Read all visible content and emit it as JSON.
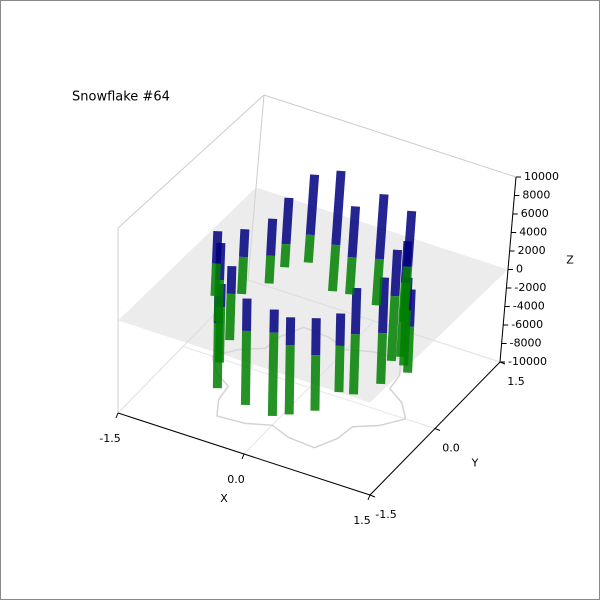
{
  "chart_data": {
    "type": "3d-stem",
    "title": "Snowflake #64",
    "xlabel": "X",
    "ylabel": "Y",
    "zlabel": "Z",
    "xlim": [
      -1.5,
      1.5
    ],
    "ylim": [
      -1.5,
      1.5
    ],
    "zlim": [
      -10000,
      10000
    ],
    "xticks": [
      -1.5,
      {
        "value": 0,
        "label": "0.0"
      },
      1.5
    ],
    "yticks": [
      -1.5,
      {
        "value": 0,
        "label": "0.0"
      },
      1.5
    ],
    "zticks": [
      -10000,
      -8000,
      -6000,
      -4000,
      -2000,
      0,
      2000,
      4000,
      6000,
      8000,
      10000
    ],
    "x": [
      1.15,
      0.97,
      0.74,
      0.71,
      0.58,
      0.26,
      0,
      -0.26,
      -0.58,
      -0.71,
      -0.74,
      -0.97,
      -1.15,
      -0.97,
      -0.74,
      -0.71,
      -0.58,
      -0.26,
      0,
      0.26,
      0.58,
      0.71,
      0.74,
      0.97
    ],
    "y": [
      0,
      0.26,
      0.43,
      0.71,
      1.0,
      0.97,
      0.85,
      0.97,
      1.0,
      0.71,
      0.43,
      0.26,
      0,
      -0.26,
      -0.43,
      -0.71,
      -1.0,
      -0.97,
      -0.85,
      -0.97,
      -1.0,
      -0.71,
      -0.43,
      -0.26
    ],
    "series": [
      {
        "color": "#000080",
        "values": [
          4000,
          3500,
          5000,
          4500,
          6000,
          7000,
          5500,
          8000,
          6500,
          5000,
          4000,
          3000,
          3500,
          4000,
          3000,
          2500,
          3000,
          3500,
          2500,
          3000,
          4000,
          3500,
          5000,
          6000
        ]
      },
      {
        "color": "#008000",
        "values": [
          -5000,
          -6000,
          -7000,
          -8000,
          -6000,
          -5000,
          -4000,
          -5000,
          -3000,
          -2500,
          -3000,
          -4000,
          -3500,
          -4500,
          -5000,
          -6000,
          -7000,
          -8000,
          -9000,
          -7500,
          -6000,
          -5000,
          -6500,
          -5500
        ]
      }
    ],
    "plane_color": "#d9d9d9",
    "grid": true
  }
}
